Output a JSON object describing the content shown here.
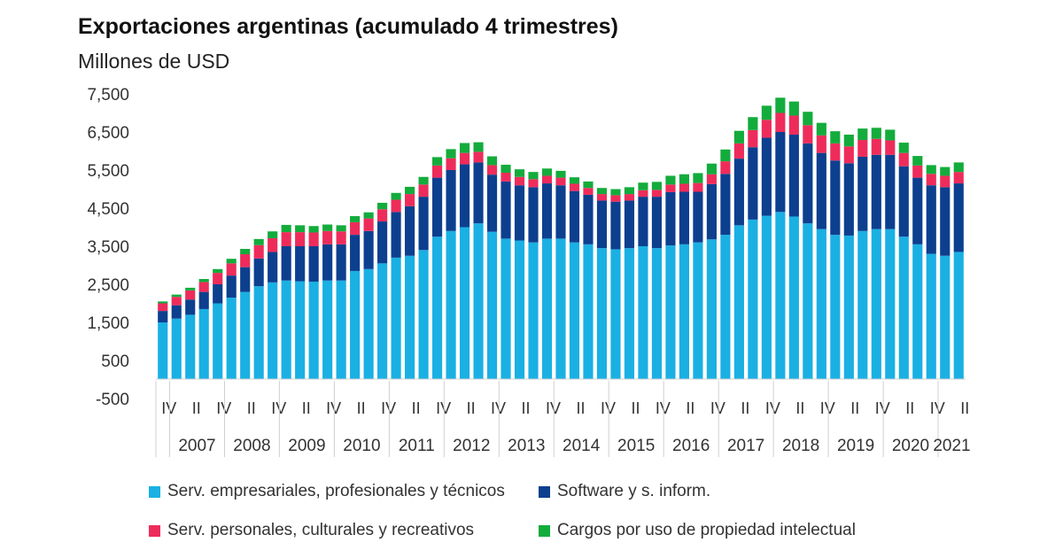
{
  "chart_data": {
    "type": "bar",
    "stacked": true,
    "title": "Exportaciones argentinas (acumulado 4 trimestres)",
    "subtitle": "Millones de USD",
    "ylim": [
      -500,
      7500
    ],
    "y_ticks": [
      "7,500",
      "6,500",
      "5,500",
      "4,500",
      "3,500",
      "2,500",
      "1,500",
      "500",
      "-500"
    ],
    "y_tick_values": [
      7500,
      6500,
      5500,
      4500,
      3500,
      2500,
      1500,
      500,
      -500
    ],
    "quarter_labels": [
      "IV",
      "II",
      "IV",
      "II",
      "IV",
      "II",
      "IV",
      "II",
      "IV",
      "II",
      "IV",
      "II",
      "IV",
      "II",
      "IV",
      "II",
      "IV",
      "II",
      "IV",
      "II",
      "IV",
      "II",
      "IV",
      "II",
      "IV",
      "II",
      "IV",
      "II",
      "IV",
      "II"
    ],
    "years": [
      "2007",
      "2008",
      "2009",
      "2010",
      "2011",
      "2012",
      "2013",
      "2014",
      "2015",
      "2016",
      "2017",
      "2018",
      "2019",
      "2020",
      "2021"
    ],
    "categories": [
      "2006-IV",
      "2007-I",
      "2007-II",
      "2007-III",
      "2007-IV",
      "2008-I",
      "2008-II",
      "2008-III",
      "2008-IV",
      "2009-I",
      "2009-II",
      "2009-III",
      "2009-IV",
      "2010-I",
      "2010-II",
      "2010-III",
      "2010-IV",
      "2011-I",
      "2011-II",
      "2011-III",
      "2011-IV",
      "2012-I",
      "2012-II",
      "2012-III",
      "2012-IV",
      "2013-I",
      "2013-II",
      "2013-III",
      "2013-IV",
      "2014-I",
      "2014-II",
      "2014-III",
      "2014-IV",
      "2015-I",
      "2015-II",
      "2015-III",
      "2015-IV",
      "2016-I",
      "2016-II",
      "2016-III",
      "2016-IV",
      "2017-I",
      "2017-II",
      "2017-III",
      "2017-IV",
      "2018-I",
      "2018-II",
      "2018-III",
      "2018-IV",
      "2019-I",
      "2019-II",
      "2019-III",
      "2019-IV",
      "2020-I",
      "2020-II",
      "2020-III",
      "2020-IV",
      "2021-I",
      "2021-II"
    ],
    "series": [
      {
        "name": "Serv. empresariales, profesionales y técnicos",
        "color": "#1ab0e3",
        "values": [
          1500,
          1600,
          1700,
          1850,
          2000,
          2150,
          2300,
          2450,
          2550,
          2600,
          2580,
          2570,
          2600,
          2600,
          2850,
          2900,
          3050,
          3200,
          3250,
          3400,
          3750,
          3900,
          4000,
          4100,
          3880,
          3700,
          3650,
          3600,
          3700,
          3700,
          3600,
          3550,
          3450,
          3420,
          3450,
          3500,
          3450,
          3520,
          3550,
          3600,
          3680,
          3800,
          4050,
          4200,
          4300,
          4400,
          4280,
          4100,
          3950,
          3800,
          3780,
          3900,
          3950,
          3950,
          3750,
          3550,
          3300,
          3250,
          3350
        ]
      },
      {
        "name": "Software y s. inform.",
        "color": "#0d3f8f",
        "values": [
          300,
          350,
          400,
          450,
          500,
          580,
          650,
          730,
          800,
          900,
          920,
          930,
          950,
          950,
          950,
          1000,
          1100,
          1200,
          1300,
          1400,
          1550,
          1600,
          1650,
          1600,
          1500,
          1500,
          1450,
          1450,
          1450,
          1400,
          1350,
          1300,
          1250,
          1250,
          1250,
          1300,
          1350,
          1400,
          1380,
          1330,
          1450,
          1600,
          1750,
          1900,
          2050,
          2100,
          2150,
          2100,
          2000,
          1950,
          1900,
          1950,
          1950,
          1950,
          1850,
          1750,
          1800,
          1800,
          1800
        ]
      },
      {
        "name": "Serv. personales, culturales y recreativos",
        "color": "#ee2c5b",
        "values": [
          200,
          220,
          240,
          260,
          300,
          320,
          340,
          350,
          360,
          370,
          370,
          360,
          350,
          340,
          330,
          330,
          320,
          320,
          320,
          320,
          320,
          310,
          300,
          280,
          250,
          230,
          220,
          210,
          200,
          200,
          190,
          180,
          170,
          170,
          170,
          170,
          180,
          200,
          210,
          230,
          260,
          330,
          400,
          450,
          470,
          500,
          500,
          480,
          460,
          450,
          440,
          440,
          420,
          380,
          350,
          320,
          300,
          300,
          300
        ]
      },
      {
        "name": "Cargos por uso de propiedad intelectual",
        "color": "#13ac3c",
        "values": [
          50,
          60,
          70,
          80,
          100,
          120,
          140,
          160,
          180,
          190,
          180,
          170,
          170,
          160,
          160,
          160,
          170,
          180,
          190,
          200,
          220,
          240,
          260,
          250,
          230,
          210,
          200,
          190,
          190,
          180,
          170,
          170,
          160,
          160,
          180,
          200,
          210,
          230,
          250,
          260,
          280,
          310,
          330,
          340,
          370,
          400,
          370,
          350,
          330,
          320,
          310,
          300,
          290,
          280,
          270,
          250,
          230,
          230,
          250
        ]
      }
    ]
  }
}
